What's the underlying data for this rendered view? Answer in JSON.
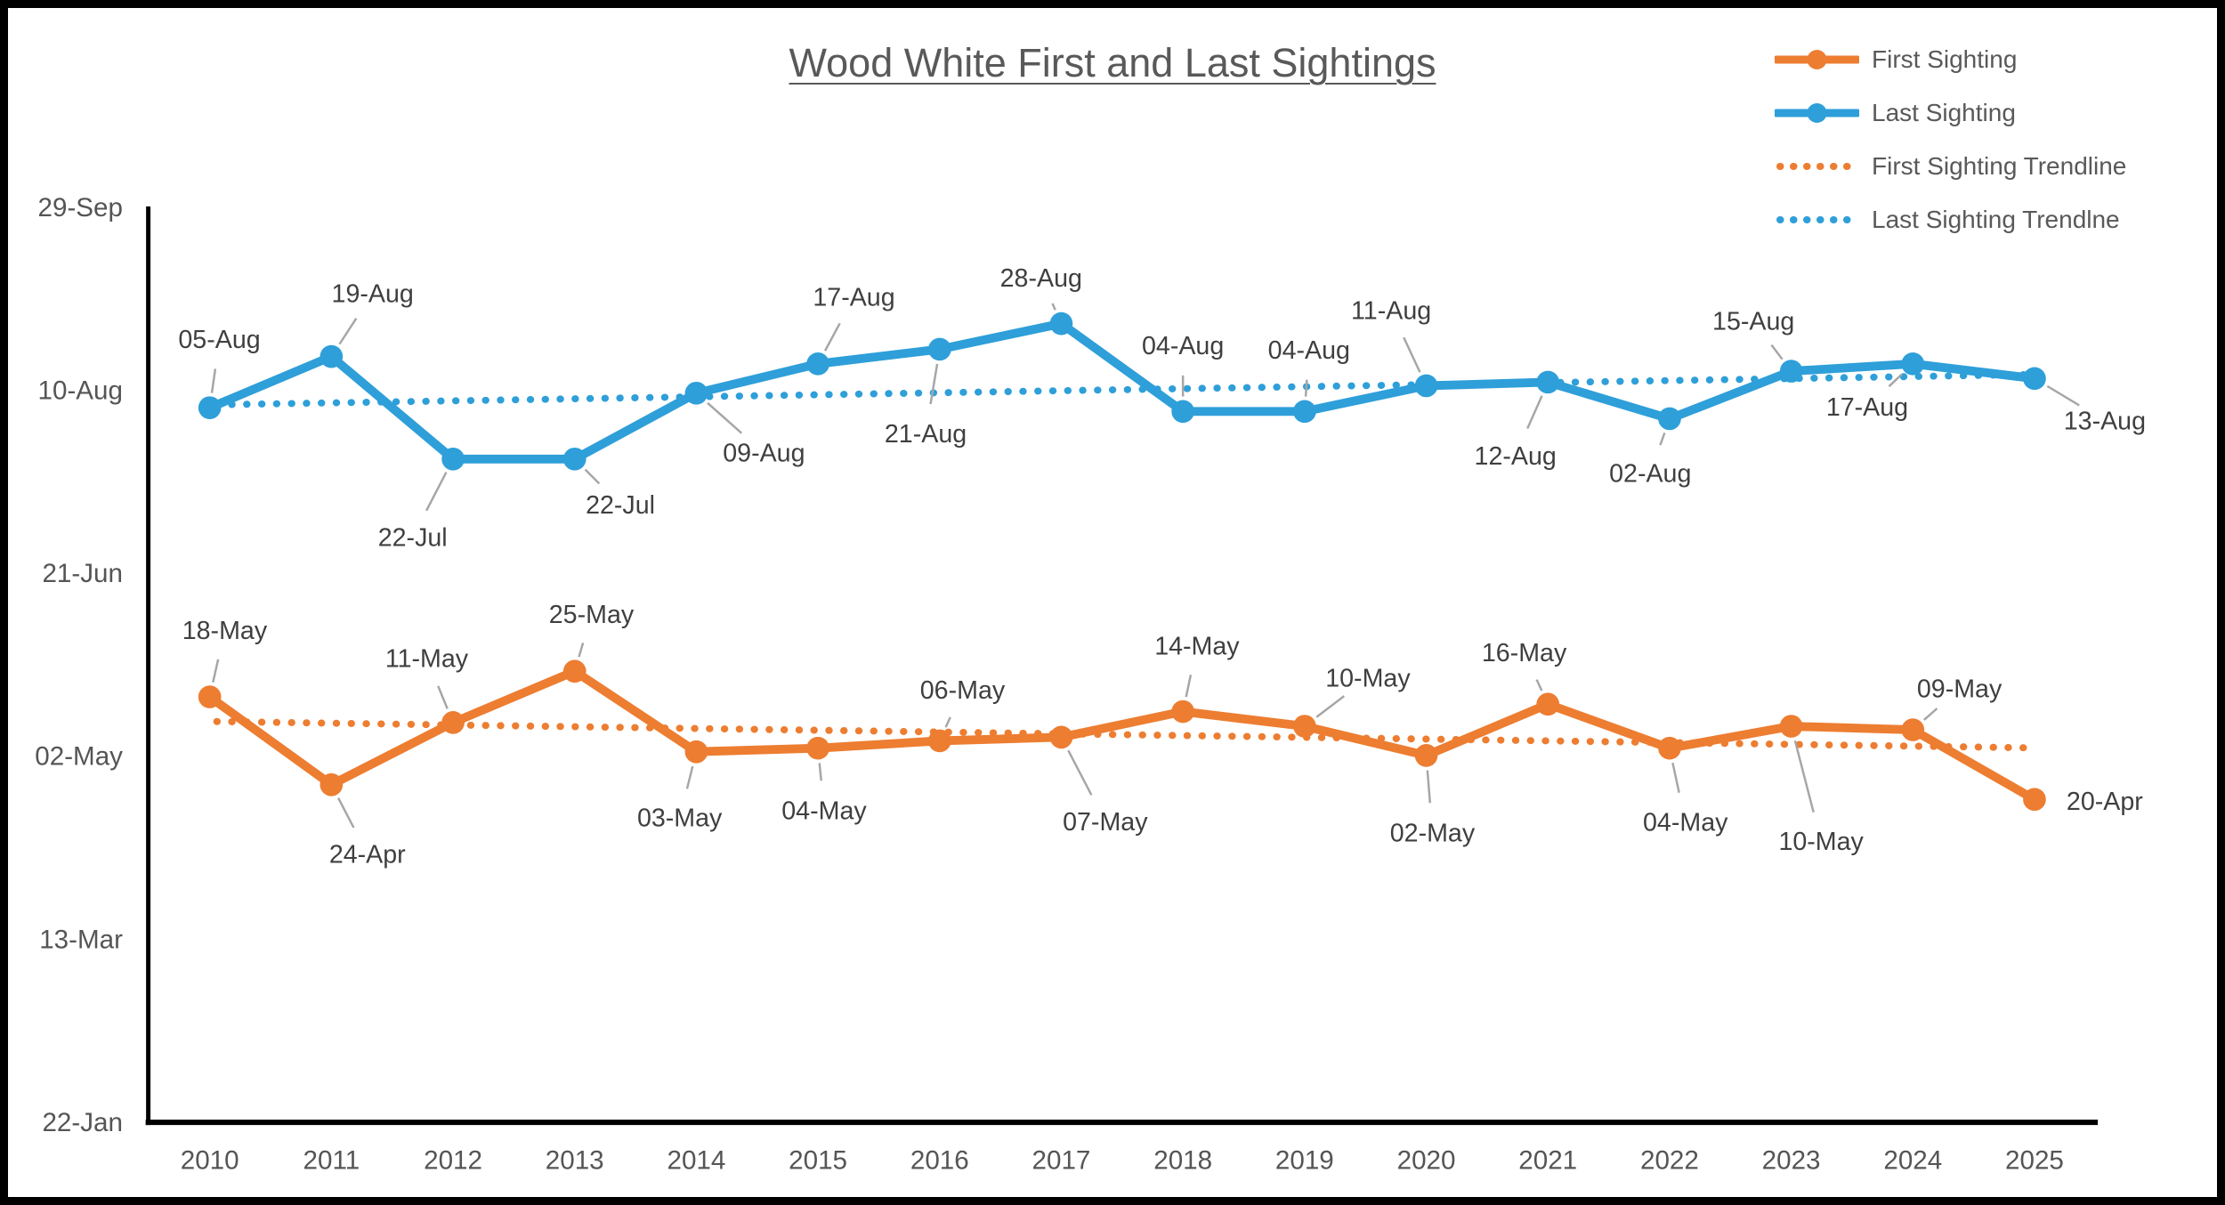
{
  "title": "Wood White First and Last Sightings",
  "legend": {
    "items": [
      {
        "label": "First Sighting",
        "swatch": "solid-dot",
        "color": "#ED7D31"
      },
      {
        "label": "Last Sighting",
        "swatch": "solid-dot",
        "color": "#2E9FD9"
      },
      {
        "label": "First Sighting Trendline",
        "swatch": "dotted",
        "color": "#ED7D31"
      },
      {
        "label": "Last Sighting Trendlne",
        "swatch": "dotted",
        "color": "#2E9FD9"
      }
    ]
  },
  "chart_data": {
    "type": "line",
    "title": "Wood White First and Last Sightings",
    "x_categories": [
      "2010",
      "2011",
      "2012",
      "2013",
      "2014",
      "2015",
      "2016",
      "2017",
      "2018",
      "2019",
      "2020",
      "2021",
      "2022",
      "2023",
      "2024",
      "2025"
    ],
    "y_axis": {
      "tick_labels": [
        "29-Sep",
        "10-Aug",
        "21-Jun",
        "02-May",
        "13-Mar",
        "22-Jan"
      ]
    },
    "grid": false,
    "legend_position": "top-right",
    "series": [
      {
        "name": "First Sighting",
        "color": "#ED7D31",
        "dates": [
          "18-May",
          "24-Apr",
          "11-May",
          "25-May",
          "03-May",
          "04-May",
          "06-May",
          "07-May",
          "14-May",
          "10-May",
          "02-May",
          "16-May",
          "04-May",
          "10-May",
          "09-May",
          "20-Apr"
        ],
        "label_offsets": [
          [
            17,
            -76,
            1
          ],
          [
            41,
            79,
            1
          ],
          [
            -30,
            -73,
            1
          ],
          [
            19,
            -65,
            1
          ],
          [
            -19,
            75,
            1
          ],
          [
            7,
            71,
            1
          ],
          [
            26,
            -58,
            1
          ],
          [
            50,
            96,
            1
          ],
          [
            16,
            -75,
            1
          ],
          [
            72,
            -55,
            1
          ],
          [
            7,
            88,
            1
          ],
          [
            -27,
            -59,
            1
          ],
          [
            18,
            84,
            1
          ],
          [
            34,
            131,
            1
          ],
          [
            53,
            -47,
            1
          ],
          [
            80,
            2,
            0
          ]
        ]
      },
      {
        "name": "Last Sighting",
        "color": "#2E9FD9",
        "dates": [
          "05-Aug",
          "19-Aug",
          "22-Jul",
          "22-Jul",
          "09-Aug",
          "17-Aug",
          "21-Aug",
          "28-Aug",
          "04-Aug",
          "04-Aug",
          "11-Aug",
          "12-Aug",
          "02-Aug",
          "15-Aug",
          "17-Aug",
          "13-Aug"
        ],
        "label_offsets": [
          [
            11,
            -78,
            1
          ],
          [
            47,
            -72,
            1
          ],
          [
            -46,
            89,
            1
          ],
          [
            52,
            52,
            1
          ],
          [
            77,
            68,
            1
          ],
          [
            41,
            -76,
            1
          ],
          [
            -16,
            96,
            1
          ],
          [
            -23,
            -52,
            1
          ],
          [
            0,
            -75,
            1
          ],
          [
            5,
            -70,
            1
          ],
          [
            -40,
            -86,
            1
          ],
          [
            -37,
            84,
            1
          ],
          [
            -22,
            62,
            1
          ],
          [
            -43,
            -57,
            1
          ],
          [
            -52,
            49,
            1
          ],
          [
            80,
            48,
            1
          ]
        ]
      }
    ],
    "trendlines": [
      {
        "name": "First Sighting Trendline",
        "series": "First Sighting",
        "color": "#ED7D31",
        "style": "dotted"
      },
      {
        "name": "Last Sighting Trendlne",
        "series": "Last Sighting",
        "color": "#2E9FD9",
        "style": "dotted"
      }
    ]
  }
}
